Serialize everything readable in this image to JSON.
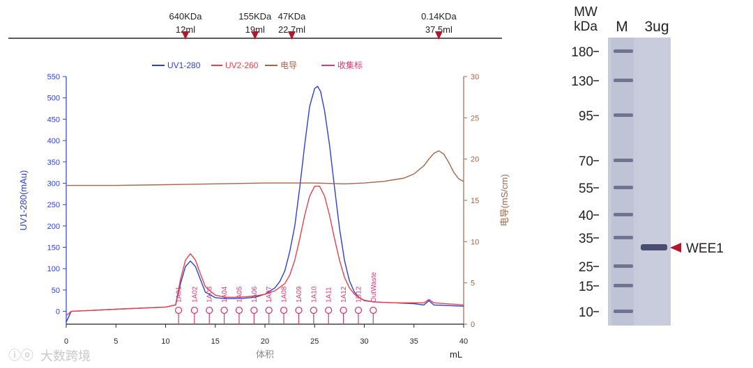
{
  "chart_data": {
    "type": "line",
    "xlabel": "体积",
    "xunit": "mL",
    "xlim": [
      0,
      40
    ],
    "x_ticks": [
      0,
      5,
      10,
      15,
      20,
      25,
      30,
      35,
      40
    ],
    "ylabel_left": "UV1-280(mAu)",
    "ylim_left": [
      -30,
      550
    ],
    "y_ticks_left": [
      0,
      50,
      100,
      150,
      200,
      250,
      300,
      350,
      400,
      450,
      500,
      550
    ],
    "ylabel_right": "电导(mS/cm)",
    "ylim_right": [
      0,
      30
    ],
    "y_ticks_right": [
      0,
      5,
      10,
      15,
      20,
      25,
      30
    ],
    "legend": [
      "UV1-280",
      "UV2-260",
      "电导",
      "收集标"
    ],
    "series": [
      {
        "name": "UV1-280",
        "color": "#2b3fd6",
        "axis": "left",
        "x": [
          0,
          0.5,
          5,
          10,
          11,
          11.5,
          12,
          12.5,
          13,
          13.5,
          14,
          15,
          16,
          17,
          18,
          19,
          20,
          21,
          21.5,
          22,
          22.5,
          23,
          23.5,
          24,
          24.5,
          25,
          25.3,
          25.6,
          26,
          26.5,
          27,
          27.5,
          28,
          28.5,
          29,
          29.5,
          30,
          31,
          33,
          35,
          36,
          36.5,
          37,
          40
        ],
        "y": [
          -25,
          0,
          5,
          10,
          15,
          65,
          105,
          118,
          105,
          75,
          45,
          32,
          30,
          30,
          31,
          33,
          40,
          55,
          70,
          95,
          140,
          200,
          290,
          390,
          480,
          522,
          527,
          515,
          470,
          390,
          290,
          195,
          120,
          72,
          45,
          32,
          25,
          22,
          20,
          18,
          15,
          25,
          15,
          12
        ]
      },
      {
        "name": "UV2-260",
        "color": "#e8404a",
        "axis": "left",
        "x": [
          0,
          0.5,
          5,
          10,
          11,
          11.5,
          12,
          12.5,
          13,
          13.5,
          14,
          15,
          16,
          17,
          18,
          19,
          20,
          21,
          22,
          22.5,
          23,
          23.5,
          24,
          24.5,
          25,
          25.5,
          26,
          26.5,
          27,
          27.5,
          28,
          28.5,
          29,
          29.5,
          30,
          31,
          33,
          35,
          36,
          36.5,
          37,
          40
        ],
        "y": [
          -10,
          0,
          5,
          10,
          15,
          75,
          120,
          135,
          120,
          88,
          58,
          38,
          33,
          33,
          34,
          36,
          40,
          48,
          65,
          85,
          120,
          170,
          225,
          270,
          293,
          293,
          270,
          225,
          170,
          120,
          80,
          55,
          40,
          32,
          26,
          22,
          20,
          20,
          20,
          28,
          20,
          15
        ]
      },
      {
        "name": "电导",
        "color": "#a0664a",
        "axis": "right",
        "x": [
          0,
          5,
          10,
          15,
          20,
          25,
          28,
          30,
          32,
          34,
          35,
          36,
          36.5,
          37,
          37.5,
          38,
          38.5,
          39,
          39.5,
          40
        ],
        "y": [
          16.8,
          16.8,
          16.9,
          17.0,
          17.1,
          17.1,
          17.0,
          17.1,
          17.3,
          17.7,
          18.2,
          19.2,
          20.0,
          20.7,
          21.0,
          20.6,
          19.6,
          18.4,
          17.6,
          17.3
        ]
      }
    ],
    "fractions": {
      "labels": [
        "1A01",
        "1A02",
        "1A03",
        "1A04",
        "1A05",
        "1A06",
        "1A07",
        "1A08",
        "1A09",
        "1A10",
        "1A11",
        "1A12",
        "1B12",
        "OutWaste"
      ],
      "positions": [
        11.3,
        12.9,
        14.4,
        15.9,
        17.4,
        18.9,
        20.4,
        21.9,
        23.4,
        24.9,
        26.4,
        27.9,
        29.4,
        30.9
      ]
    },
    "calibration_markers": [
      {
        "label": "640KDa",
        "volume": "12ml",
        "x": 12
      },
      {
        "label": "155KDa",
        "volume": "19ml",
        "x": 19
      },
      {
        "label": "47KDa",
        "volume": "22.7ml",
        "x": 22.7
      },
      {
        "label": "0.14KDa",
        "volume": "37.5ml",
        "x": 37.5
      }
    ]
  },
  "gel": {
    "mw_header_1": "MW",
    "mw_header_2": "kDa",
    "lane_m": "M",
    "lane_sample": "3ug",
    "markers": [
      "180",
      "130",
      "95",
      "70",
      "55",
      "40",
      "35",
      "25",
      "15",
      "10"
    ],
    "band_label": "WEE1"
  },
  "watermark": "大数跨境",
  "colors": {
    "blue": "#2b3fd6",
    "red": "#e8404a",
    "brown": "#a0664a",
    "pink": "#d63a6e",
    "marker": "#b2182b",
    "axis_label": "#888888"
  }
}
